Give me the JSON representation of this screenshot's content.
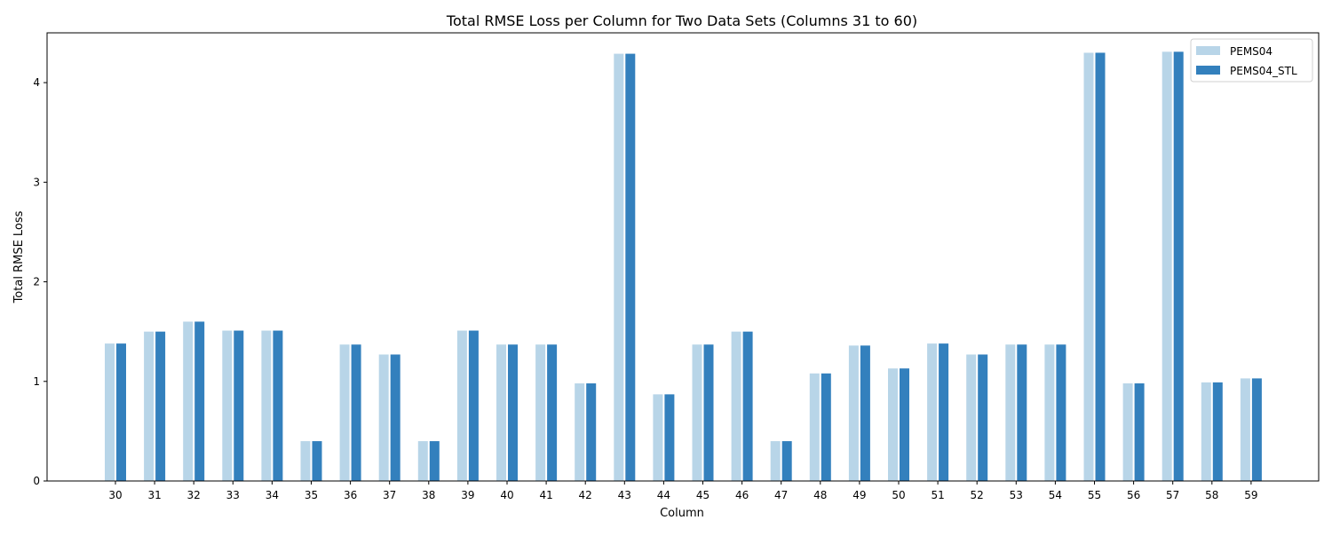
{
  "chart_data": {
    "type": "bar",
    "title": "Total RMSE Loss per Column for Two Data Sets (Columns 31 to 60)",
    "xlabel": "Column",
    "ylabel": "Total RMSE Loss",
    "ylim": [
      0,
      4.5
    ],
    "yticks": [
      0,
      1,
      2,
      3,
      4
    ],
    "grid": false,
    "legend_position": "top-right",
    "categories": [
      "30",
      "31",
      "32",
      "33",
      "34",
      "35",
      "36",
      "37",
      "38",
      "39",
      "40",
      "41",
      "42",
      "43",
      "44",
      "45",
      "46",
      "47",
      "48",
      "49",
      "50",
      "51",
      "52",
      "53",
      "54",
      "55",
      "56",
      "57",
      "58",
      "59"
    ],
    "series": [
      {
        "name": "PEMS04",
        "color": "#b8d5e8",
        "values": [
          1.38,
          1.5,
          1.6,
          1.51,
          1.51,
          0.4,
          1.37,
          1.27,
          0.4,
          1.51,
          1.37,
          1.37,
          0.98,
          4.29,
          0.87,
          1.37,
          1.5,
          0.4,
          1.08,
          1.36,
          1.13,
          1.38,
          1.27,
          1.37,
          1.37,
          4.3,
          0.98,
          4.31,
          0.99,
          1.03
        ]
      },
      {
        "name": "PEMS04_STL",
        "color": "#3380bd",
        "values": [
          1.38,
          1.5,
          1.6,
          1.51,
          1.51,
          0.4,
          1.37,
          1.27,
          0.4,
          1.51,
          1.37,
          1.37,
          0.98,
          4.29,
          0.87,
          1.37,
          1.5,
          0.4,
          1.08,
          1.36,
          1.13,
          1.38,
          1.27,
          1.37,
          1.37,
          4.3,
          0.98,
          4.31,
          0.99,
          1.03
        ]
      }
    ]
  }
}
